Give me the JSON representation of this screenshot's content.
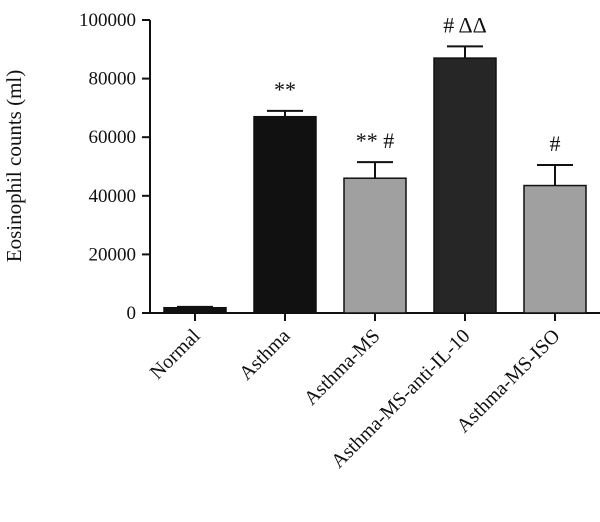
{
  "chart_data": {
    "type": "bar",
    "title": "",
    "xlabel": "",
    "ylabel": "Eosinophil counts (ml)",
    "ylim": [
      0,
      100000
    ],
    "yticks": [
      0,
      20000,
      40000,
      60000,
      80000,
      100000
    ],
    "ytick_labels": [
      "0",
      "20000",
      "40000",
      "60000",
      "80000",
      "100000"
    ],
    "categories": [
      "Normal",
      "Asthma",
      "Asthma-MS",
      "Asthma-MS-anti-IL-10",
      "Asthma-MS-ISO"
    ],
    "values": [
      1800,
      67000,
      46000,
      87000,
      43500
    ],
    "errors": [
      300,
      2000,
      5500,
      4000,
      7000
    ],
    "annotations": [
      "",
      "**",
      "** #",
      "# ΔΔ",
      "#"
    ],
    "colors": [
      "#111111",
      "#111111",
      "#a0a0a0",
      "#262626",
      "#a0a0a0"
    ],
    "grid": false,
    "legend": "none"
  }
}
